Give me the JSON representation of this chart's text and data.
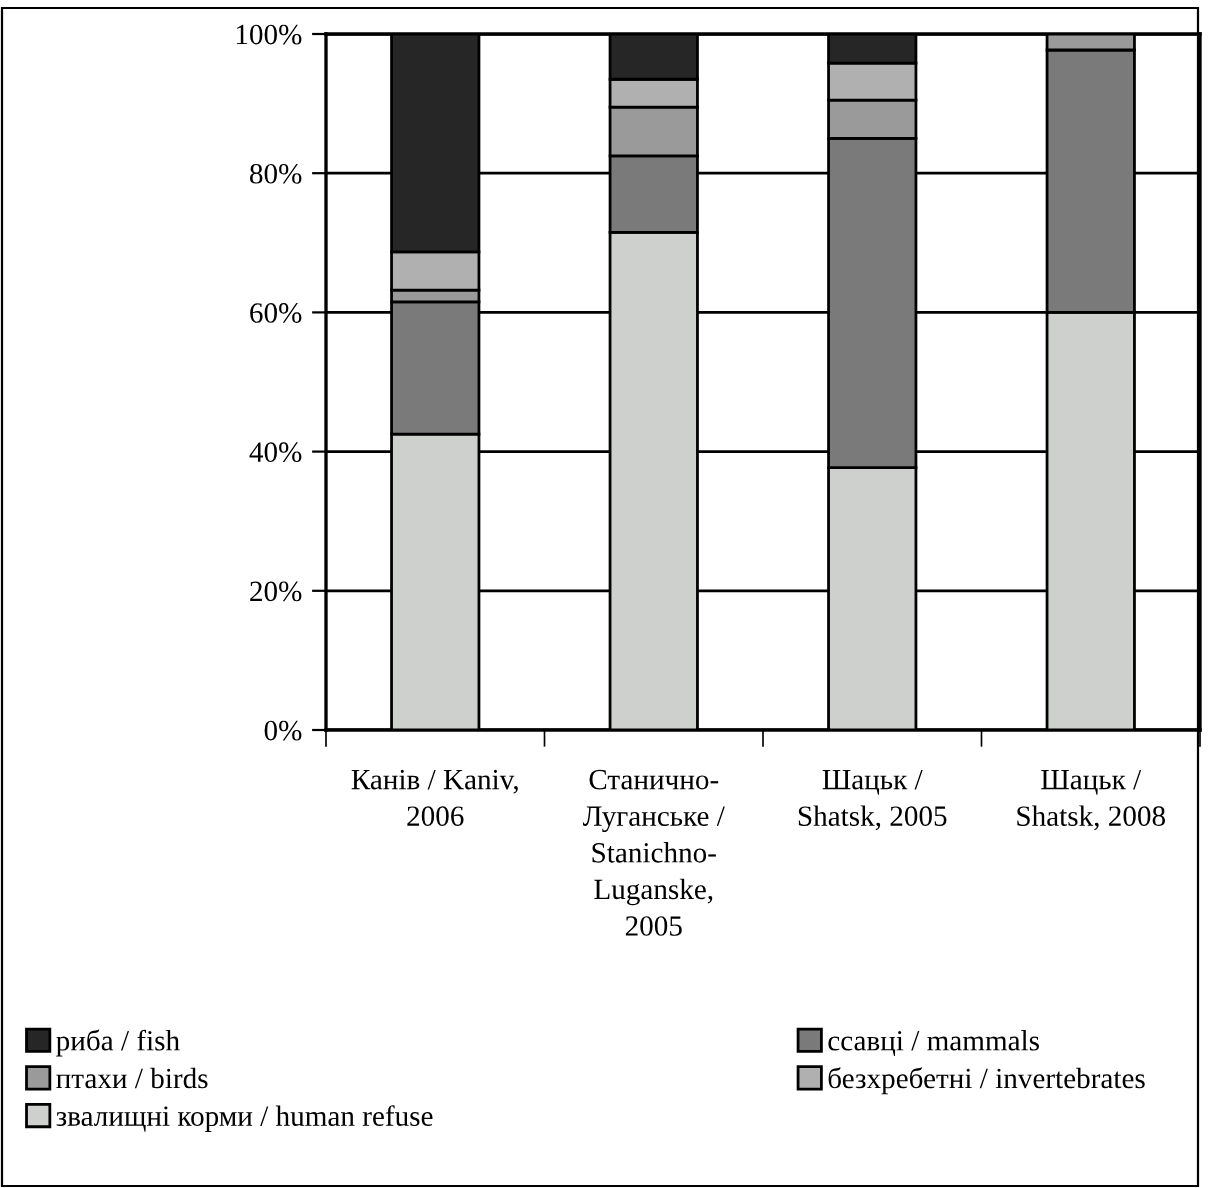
{
  "chart_data": {
    "type": "bar",
    "stacked": true,
    "categories": [
      "Канів / Kaniv,\n2006",
      "Станично-\nЛуганське /\nStanichno-\nLuganske,\n2005",
      "Шацьк /\nShatsk, 2005",
      "Шацьк /\nShatsk, 2008"
    ],
    "series": [
      {
        "name": "звалищні корми / human refuse",
        "color": "#cdd0cd",
        "values": [
          42.5,
          71.5,
          37.7,
          60
        ]
      },
      {
        "name": "ссавці / mammals",
        "color": "#7a7a7a",
        "values": [
          19,
          11,
          47.3,
          37.7
        ]
      },
      {
        "name": "птахи / birds",
        "color": "#9a9a9a",
        "values": [
          1.7,
          7,
          5.5,
          2.3
        ]
      },
      {
        "name": "безхребетні / invertebrates",
        "color": "#b0b0b0",
        "values": [
          5.5,
          4,
          5.3,
          null
        ]
      },
      {
        "name": "риба / fish",
        "color": "#262626",
        "values": [
          31.3,
          6.5,
          4.2,
          null
        ]
      }
    ],
    "ylim": [
      0,
      100
    ],
    "yticks": [
      {
        "value": 0,
        "label": "0%"
      },
      {
        "value": 20,
        "label": "20%"
      },
      {
        "value": 40,
        "label": "40%"
      },
      {
        "value": 60,
        "label": "60%"
      },
      {
        "value": 80,
        "label": "80%"
      },
      {
        "value": 100,
        "label": "100%"
      }
    ],
    "grid": "y",
    "legend": "bottom"
  }
}
